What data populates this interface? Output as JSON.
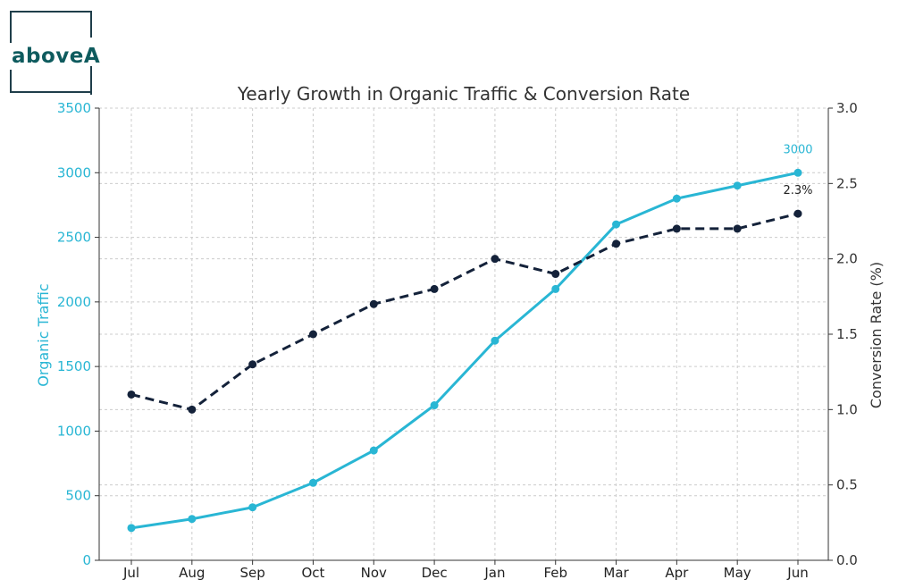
{
  "logo": {
    "text": "aboveA"
  },
  "chart_data": {
    "type": "line",
    "title": "Yearly Growth in Organic Traffic & Conversion Rate",
    "categories": [
      "Jul",
      "Aug",
      "Sep",
      "Oct",
      "Nov",
      "Dec",
      "Jan",
      "Feb",
      "Mar",
      "Apr",
      "May",
      "Jun"
    ],
    "ylabel": "Organic Traffic",
    "y2label": "Conversion Rate (%)",
    "ylim": [
      0,
      3500
    ],
    "y2lim": [
      0.0,
      3.0
    ],
    "yticks": [
      "0",
      "500",
      "1000",
      "1500",
      "2000",
      "2500",
      "3000",
      "3500"
    ],
    "y2ticks": [
      "0.0",
      "0.5",
      "1.0",
      "1.5",
      "2.0",
      "2.5",
      "3.0"
    ],
    "grid": true,
    "series": [
      {
        "name": "Organic Traffic",
        "axis": "left",
        "color": "#29b6d4",
        "style": "solid",
        "values": [
          250,
          320,
          410,
          600,
          850,
          1200,
          1700,
          2100,
          2600,
          2800,
          2900,
          3000
        ]
      },
      {
        "name": "Conversion Rate",
        "axis": "right",
        "color": "#14223a",
        "style": "dashed",
        "values": [
          1.1,
          1.0,
          1.3,
          1.5,
          1.7,
          1.8,
          2.0,
          1.9,
          2.1,
          2.2,
          2.2,
          2.3
        ]
      }
    ],
    "annotations": [
      {
        "series": "Organic Traffic",
        "text": "3000"
      },
      {
        "series": "Conversion Rate",
        "text": "2.3%"
      }
    ]
  }
}
